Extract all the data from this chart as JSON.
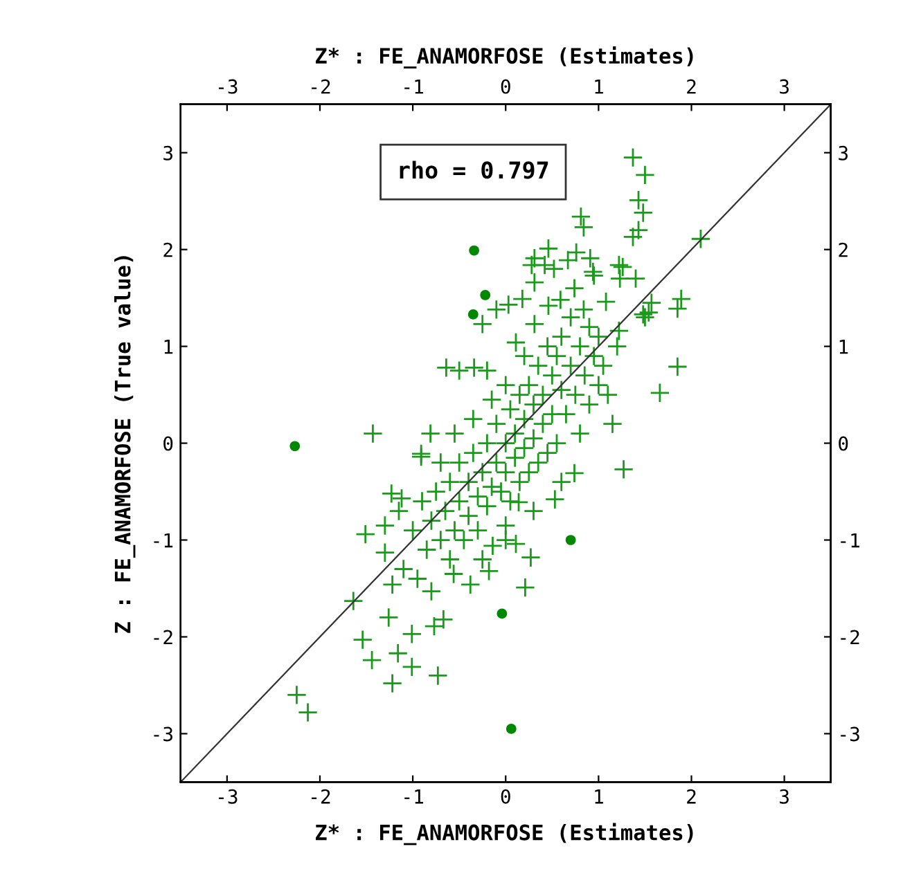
{
  "chart_data": {
    "type": "scatter",
    "xlabel": "Z* : FE_ANAMORFOSE (Estimates)",
    "x2label": "Z* : FE_ANAMORFOSE (Estimates)",
    "ylabel": "Z : FE_ANAMORFOSE (True value)",
    "annotations": [
      "rho = 0.797"
    ],
    "xlim": [
      -3.5,
      3.5
    ],
    "xticks": [
      -3,
      -2,
      -1,
      0,
      1,
      2,
      3
    ],
    "x2lim": [
      -3.5,
      3.5
    ],
    "x2ticks": [
      -3,
      -2,
      -1,
      0,
      1,
      2,
      3
    ],
    "ylim": [
      -3.5,
      3.5
    ],
    "yticks": [
      -3,
      -2,
      -1,
      0,
      1,
      2,
      3
    ],
    "y2lim": [
      -3.5,
      3.5
    ],
    "y2ticks": [
      -3,
      -2,
      -1,
      0,
      1,
      2,
      3
    ],
    "grid": false,
    "legend": false,
    "series": [
      {
        "type": "line",
        "color": "#333333",
        "marker": "none",
        "x": [
          -3.5,
          3.5
        ],
        "values": [
          -3.5,
          3.5
        ]
      },
      {
        "color": "#1a9a1a",
        "marker": "cross",
        "x": [
          1.37,
          1.5,
          1.43,
          1.48,
          0.81,
          0.84,
          1.43,
          1.37,
          2.1,
          0.46,
          0.76,
          0.91,
          0.31,
          0.42,
          1.22,
          1.23,
          1.89,
          1.85,
          1.54,
          1.48,
          0.03,
          0.18,
          -0.1,
          0.59,
          0.94,
          1.85,
          1.66,
          -0.81,
          -0.64,
          -0.5,
          -0.34,
          -0.2,
          -1.43,
          -0.91,
          -1.51,
          -1.3,
          -1.64,
          -1.54,
          -1.44,
          -2.25,
          -2.13,
          -1.22,
          -1.01,
          -0.73,
          -1.16,
          -1.01,
          -0.67,
          -0.77,
          0.21,
          0.27,
          0.11,
          -0.14,
          -0.38,
          -0.18,
          -0.56,
          -0.8,
          1.27,
          0.74,
          0.53,
          0.14,
          0.0,
          -1.23,
          -1.12,
          -1.3,
          -1.22,
          -1.26,
          -0.91,
          1.5,
          1.57,
          1.22,
          1.26,
          1.4,
          0.95,
          0.28,
          0.31,
          0.52,
          0.67,
          -0.25,
          0.31,
          0.46,
          0.84,
          1.08,
          0.11,
          0.74,
          -1.0,
          -0.9,
          -0.85,
          -0.8,
          -0.75,
          -0.7,
          -0.65,
          -0.6,
          -0.6,
          -0.55,
          -0.5,
          -0.5,
          -0.45,
          -0.4,
          -0.4,
          -0.35,
          -0.3,
          -0.3,
          -0.25,
          -0.2,
          -0.2,
          -0.15,
          -0.1,
          -0.1,
          -0.05,
          0.0,
          0.0,
          0.05,
          0.05,
          0.1,
          0.1,
          0.15,
          0.15,
          0.2,
          0.2,
          0.25,
          0.25,
          0.3,
          0.3,
          0.35,
          0.35,
          0.4,
          0.4,
          0.45,
          0.45,
          0.5,
          0.5,
          0.55,
          0.55,
          0.6,
          0.6,
          0.65,
          0.7,
          0.7,
          0.75,
          0.8,
          0.8,
          0.85,
          0.9,
          0.9,
          0.95,
          1.0,
          1.0,
          1.05,
          1.1,
          -1.1,
          -1.15,
          -0.95,
          -0.7,
          -0.55,
          -0.35,
          -0.15,
          0.0,
          0.2,
          -0.25,
          0.0,
          0.3,
          0.6,
          1.2,
          1.15
        ],
        "values": [
          2.95,
          2.77,
          2.51,
          2.38,
          2.34,
          2.23,
          2.2,
          2.13,
          2.11,
          2.01,
          1.97,
          1.91,
          1.91,
          1.84,
          1.84,
          1.7,
          1.49,
          1.39,
          1.35,
          1.33,
          1.43,
          1.49,
          1.38,
          1.48,
          1.77,
          0.79,
          0.52,
          0.1,
          0.78,
          0.75,
          0.78,
          0.75,
          0.1,
          -0.14,
          -0.94,
          -0.85,
          -1.63,
          -2.03,
          -2.24,
          -2.6,
          -2.78,
          -2.48,
          -2.31,
          -2.4,
          -2.17,
          -1.97,
          -1.82,
          -1.89,
          -1.49,
          -1.18,
          -1.04,
          -1.06,
          -1.46,
          -1.32,
          -1.35,
          -1.53,
          -0.27,
          -0.31,
          -0.58,
          -0.61,
          -0.85,
          -0.52,
          -0.57,
          -1.13,
          -1.46,
          -1.8,
          -0.11,
          1.3,
          1.45,
          1.16,
          1.82,
          1.7,
          1.73,
          1.84,
          1.66,
          1.8,
          1.89,
          1.23,
          1.23,
          1.42,
          1.38,
          1.46,
          1.04,
          1.6,
          -0.9,
          -0.6,
          -1.1,
          -0.8,
          -0.5,
          -1.0,
          -0.7,
          -0.4,
          -1.2,
          -0.9,
          -0.6,
          -0.2,
          -1.0,
          -0.4,
          -0.75,
          -0.1,
          -0.55,
          -0.9,
          -0.3,
          0.0,
          -0.65,
          -0.45,
          -0.2,
          0.2,
          -0.5,
          0.0,
          -0.3,
          0.35,
          -0.6,
          0.1,
          -0.15,
          0.5,
          -0.4,
          0.25,
          -0.05,
          0.6,
          -0.3,
          0.4,
          0.05,
          0.8,
          -0.2,
          0.5,
          0.2,
          1.0,
          -0.1,
          0.7,
          0.3,
          0.9,
          0.0,
          0.55,
          1.1,
          0.3,
          0.8,
          1.3,
          0.5,
          1.0,
          0.1,
          0.7,
          1.2,
          0.4,
          0.9,
          0.6,
          1.1,
          0.8,
          0.5,
          -1.3,
          -0.7,
          -1.4,
          -0.2,
          0.1,
          0.25,
          0.45,
          0.6,
          0.9,
          -1.2,
          -1.0,
          -0.7,
          -0.4,
          1.0,
          0.2
        ]
      },
      {
        "color": "#008800",
        "marker": "circle",
        "x": [
          -2.27,
          -0.34,
          -0.22,
          -0.35,
          0.7,
          -0.04,
          0.06
        ],
        "values": [
          -0.03,
          1.99,
          1.53,
          1.33,
          -1.0,
          -1.76,
          -2.95
        ]
      }
    ]
  }
}
